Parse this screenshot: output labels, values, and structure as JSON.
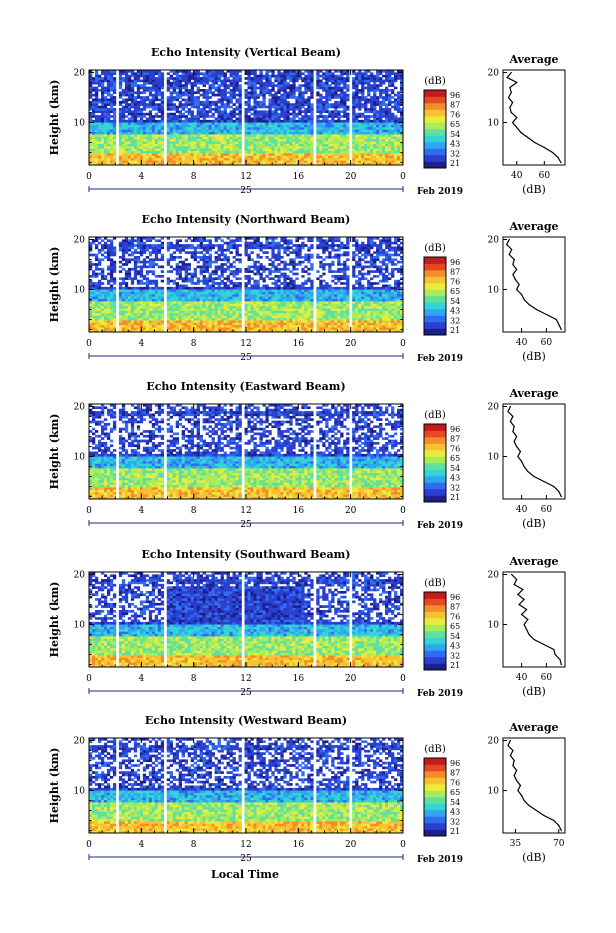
{
  "figure": {
    "shared_xlabel": "Local Time",
    "date_label": "Feb 2019",
    "day_label": "25",
    "colorbar_unit": "(dB)",
    "colorbar_ticks": [
      "96",
      "87",
      "76",
      "65",
      "54",
      "43",
      "32",
      "21"
    ],
    "colorbar_colors": [
      "#1f1f8c",
      "#2a3fd0",
      "#2f6cf2",
      "#2fa6f0",
      "#33d3d6",
      "#5fe0a0",
      "#a8ec5a",
      "#e9ec3c",
      "#f6c232",
      "#f48c2c",
      "#e34a24",
      "#c21c1c"
    ],
    "avg_title": "Average",
    "avg_xlabel": "(dB)"
  },
  "chart_data": [
    {
      "type": "heatmap",
      "title": "Echo Intensity (Vertical Beam)",
      "ylabel": "Height (km)",
      "x_ticks": [
        "0",
        "4",
        "8",
        "12",
        "16",
        "20",
        "0"
      ],
      "y_ticks": [
        "20",
        "10"
      ],
      "xlim": [
        0,
        24
      ],
      "ylim": [
        1.5,
        20.5
      ],
      "gaps_hours": [
        2.2,
        5.8,
        11.8,
        17.3,
        20.0
      ],
      "values_dB_range": [
        21,
        96
      ],
      "average_profile": {
        "x_ticks": [
          "40",
          "60"
        ],
        "y_ticks": [
          "20",
          "10"
        ],
        "xlim": [
          30,
          75
        ],
        "heights_km": [
          2,
          3,
          4,
          5,
          6,
          7,
          8,
          9,
          10,
          11,
          12,
          13,
          14,
          15,
          16,
          17,
          18,
          19,
          20
        ],
        "dB": [
          72,
          70,
          66,
          60,
          53,
          48,
          43,
          40,
          37,
          40,
          36,
          35,
          37,
          34,
          36,
          35,
          40,
          33,
          36
        ]
      }
    },
    {
      "type": "heatmap",
      "title": "Echo Intensity (Northward Beam)",
      "ylabel": "Height (km)",
      "x_ticks": [
        "0",
        "4",
        "8",
        "12",
        "16",
        "20",
        "0"
      ],
      "y_ticks": [
        "20",
        "10"
      ],
      "xlim": [
        0,
        24
      ],
      "ylim": [
        1.5,
        20.5
      ],
      "gaps_hours": [
        2.2,
        5.8,
        11.8,
        17.3,
        20.0
      ],
      "values_dB_range": [
        21,
        96
      ],
      "average_profile": {
        "x_ticks": [
          "40",
          "60"
        ],
        "y_ticks": [
          "20",
          "10"
        ],
        "xlim": [
          25,
          75
        ],
        "heights_km": [
          2,
          3,
          4,
          5,
          6,
          7,
          8,
          9,
          10,
          11,
          12,
          13,
          14,
          15,
          16,
          17,
          18,
          19,
          20
        ],
        "dB": [
          72,
          70,
          68,
          60,
          52,
          46,
          42,
          40,
          36,
          38,
          35,
          33,
          36,
          33,
          34,
          30,
          32,
          28,
          30
        ]
      }
    },
    {
      "type": "heatmap",
      "title": "Echo Intensity (Eastward Beam)",
      "ylabel": "Height (km)",
      "x_ticks": [
        "0",
        "4",
        "8",
        "12",
        "16",
        "20",
        "0"
      ],
      "y_ticks": [
        "20",
        "10"
      ],
      "xlim": [
        0,
        24
      ],
      "ylim": [
        1.5,
        20.5
      ],
      "gaps_hours": [
        2.2,
        5.8,
        11.8,
        17.3,
        20.0
      ],
      "values_dB_range": [
        21,
        96
      ],
      "average_profile": {
        "x_ticks": [
          "40",
          "60"
        ],
        "y_ticks": [
          "20",
          "10"
        ],
        "xlim": [
          25,
          75
        ],
        "heights_km": [
          2,
          3,
          4,
          5,
          6,
          7,
          8,
          9,
          10,
          11,
          12,
          13,
          14,
          15,
          16,
          17,
          18,
          19,
          20
        ],
        "dB": [
          72,
          70,
          66,
          58,
          50,
          45,
          42,
          40,
          37,
          39,
          36,
          34,
          36,
          33,
          34,
          31,
          33,
          29,
          31
        ]
      }
    },
    {
      "type": "heatmap",
      "title": "Echo Intensity (Southward Beam)",
      "ylabel": "Height (km)",
      "x_ticks": [
        "0",
        "4",
        "8",
        "12",
        "16",
        "20",
        "0"
      ],
      "y_ticks": [
        "20",
        "10"
      ],
      "xlim": [
        0,
        24
      ],
      "ylim": [
        1.5,
        20.5
      ],
      "gaps_hours": [
        2.2,
        5.8,
        11.8,
        17.3,
        20.0
      ],
      "values_dB_range": [
        21,
        96
      ],
      "average_profile": {
        "x_ticks": [
          "40",
          "60"
        ],
        "y_ticks": [
          "20",
          "10"
        ],
        "xlim": [
          25,
          75
        ],
        "heights_km": [
          2,
          3,
          4,
          5,
          6,
          7,
          8,
          9,
          10,
          11,
          12,
          13,
          14,
          15,
          16,
          17,
          18,
          19,
          20
        ],
        "dB": [
          72,
          71,
          67,
          66,
          58,
          50,
          46,
          44,
          42,
          45,
          40,
          44,
          38,
          42,
          37,
          41,
          34,
          36,
          32
        ]
      }
    },
    {
      "type": "heatmap",
      "title": "Echo Intensity (Westward Beam)",
      "ylabel": "Height (km)",
      "x_ticks": [
        "0",
        "4",
        "8",
        "12",
        "16",
        "20",
        "0"
      ],
      "y_ticks": [
        "20",
        "10"
      ],
      "xlim": [
        0,
        24
      ],
      "ylim": [
        1.5,
        20.5
      ],
      "gaps_hours": [
        2.2,
        5.8,
        11.8,
        17.3,
        20.0
      ],
      "values_dB_range": [
        21,
        96
      ],
      "average_profile": {
        "x_ticks": [
          "35",
          "70"
        ],
        "y_ticks": [
          "20",
          "10"
        ],
        "xlim": [
          25,
          75
        ],
        "heights_km": [
          2,
          3,
          4,
          5,
          6,
          7,
          8,
          9,
          10,
          11,
          12,
          13,
          14,
          15,
          16,
          17,
          18,
          19,
          20
        ],
        "dB": [
          72,
          70,
          66,
          58,
          52,
          46,
          42,
          40,
          37,
          39,
          36,
          34,
          36,
          33,
          34,
          31,
          33,
          29,
          31
        ]
      }
    }
  ]
}
